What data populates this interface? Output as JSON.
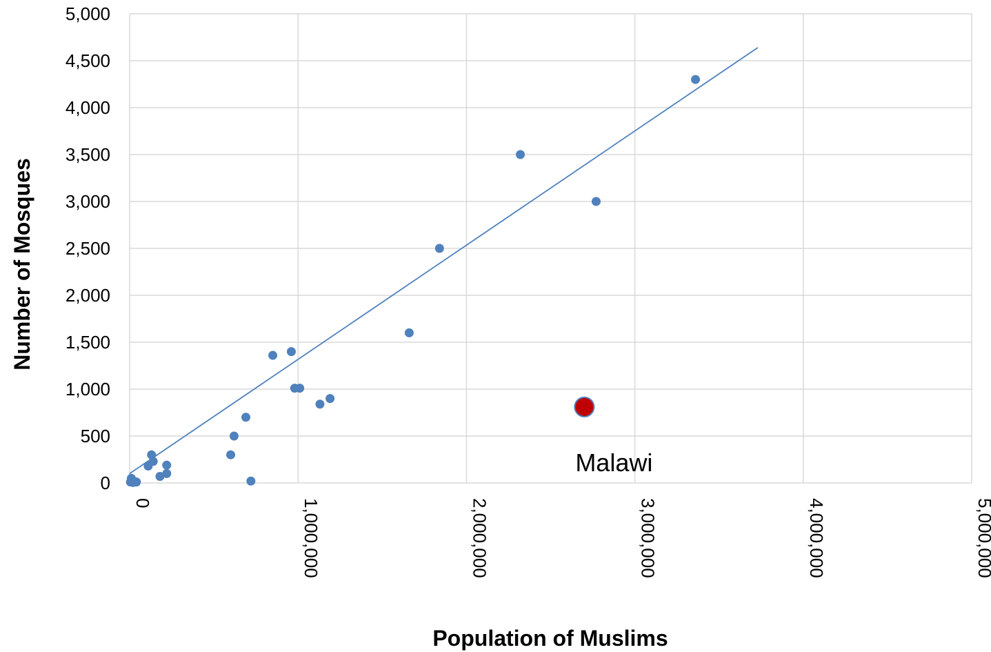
{
  "chart_data": {
    "type": "scatter",
    "title": "",
    "xlabel": "Population of Muslims",
    "ylabel": "Number of Mosques",
    "xlim": [
      0,
      5000000
    ],
    "ylim": [
      0,
      5000
    ],
    "grid": true,
    "x_ticks": [
      "0",
      "1,000,000",
      "2,000,000",
      "3,000,000",
      "4,000,000",
      "5,000,000"
    ],
    "y_ticks": [
      "0",
      "500",
      "1,000",
      "1,500",
      "2,000",
      "2,500",
      "3,000",
      "3,500",
      "4,000",
      "4,500",
      "5,000"
    ],
    "series": [
      {
        "color": "#4f81bd",
        "points": [
          [
            5000,
            10
          ],
          [
            10000,
            50
          ],
          [
            15000,
            20
          ],
          [
            20000,
            5
          ],
          [
            30000,
            15
          ],
          [
            40000,
            10
          ],
          [
            110000,
            180
          ],
          [
            130000,
            300
          ],
          [
            140000,
            230
          ],
          [
            180000,
            70
          ],
          [
            220000,
            100
          ],
          [
            220000,
            190
          ],
          [
            600000,
            300
          ],
          [
            620000,
            500
          ],
          [
            690000,
            700
          ],
          [
            720000,
            20
          ],
          [
            850000,
            1360
          ],
          [
            960000,
            1400
          ],
          [
            980000,
            1010
          ],
          [
            1010000,
            1010
          ],
          [
            1130000,
            840
          ],
          [
            1190000,
            900
          ],
          [
            1660000,
            1600
          ],
          [
            1840000,
            2500
          ],
          [
            2320000,
            3500
          ],
          [
            2770000,
            3000
          ],
          [
            3360000,
            4300
          ]
        ]
      }
    ],
    "highlight": {
      "label": "Malawi",
      "x": 2700000,
      "y": 810,
      "color": "#c00000"
    },
    "trendline": {
      "color": "#4f81bd",
      "from": [
        0,
        100
      ],
      "to": [
        3730000,
        4640
      ]
    }
  }
}
